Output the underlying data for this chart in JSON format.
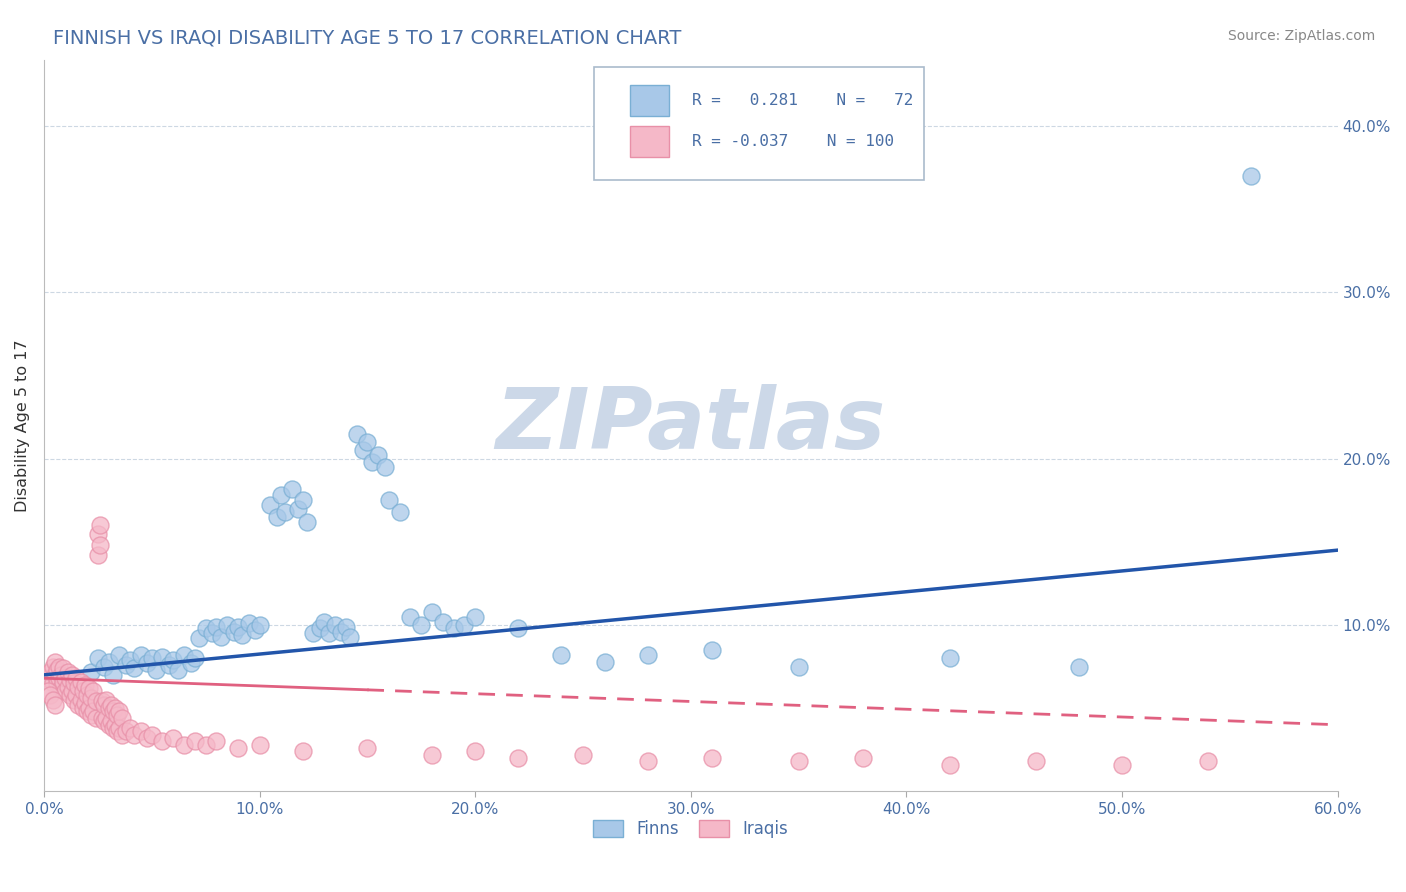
{
  "title": "FINNISH VS IRAQI DISABILITY AGE 5 TO 17 CORRELATION CHART",
  "source": "Source: ZipAtlas.com",
  "ylabel": "Disability Age 5 to 17",
  "xlim": [
    0.0,
    0.6
  ],
  "ylim": [
    0.0,
    0.44
  ],
  "xticks": [
    0.0,
    0.1,
    0.2,
    0.3,
    0.4,
    0.5,
    0.6
  ],
  "yticks": [
    0.1,
    0.2,
    0.3,
    0.4
  ],
  "title_color": "#4a6fa5",
  "title_fontsize": 14,
  "finn_color": "#a8c8e8",
  "finn_edge_color": "#7aafd4",
  "iraqi_color": "#f5b8c8",
  "iraqi_edge_color": "#e890a8",
  "finn_line_color": "#2255aa",
  "iraqi_line_color": "#e06080",
  "finn_R": 0.281,
  "finn_N": 72,
  "iraqi_R": -0.037,
  "iraqi_N": 100,
  "watermark": "ZIPatlas",
  "watermark_color": "#ccd8e8",
  "finn_data": [
    [
      0.022,
      0.072
    ],
    [
      0.025,
      0.08
    ],
    [
      0.028,
      0.075
    ],
    [
      0.03,
      0.078
    ],
    [
      0.032,
      0.07
    ],
    [
      0.035,
      0.082
    ],
    [
      0.038,
      0.076
    ],
    [
      0.04,
      0.079
    ],
    [
      0.042,
      0.074
    ],
    [
      0.045,
      0.082
    ],
    [
      0.048,
      0.077
    ],
    [
      0.05,
      0.08
    ],
    [
      0.052,
      0.073
    ],
    [
      0.055,
      0.081
    ],
    [
      0.058,
      0.076
    ],
    [
      0.06,
      0.079
    ],
    [
      0.062,
      0.073
    ],
    [
      0.065,
      0.082
    ],
    [
      0.068,
      0.077
    ],
    [
      0.07,
      0.08
    ],
    [
      0.072,
      0.092
    ],
    [
      0.075,
      0.098
    ],
    [
      0.078,
      0.095
    ],
    [
      0.08,
      0.099
    ],
    [
      0.082,
      0.093
    ],
    [
      0.085,
      0.1
    ],
    [
      0.088,
      0.096
    ],
    [
      0.09,
      0.099
    ],
    [
      0.092,
      0.094
    ],
    [
      0.095,
      0.101
    ],
    [
      0.098,
      0.097
    ],
    [
      0.1,
      0.1
    ],
    [
      0.105,
      0.172
    ],
    [
      0.108,
      0.165
    ],
    [
      0.11,
      0.178
    ],
    [
      0.112,
      0.168
    ],
    [
      0.115,
      0.182
    ],
    [
      0.118,
      0.17
    ],
    [
      0.12,
      0.175
    ],
    [
      0.122,
      0.162
    ],
    [
      0.125,
      0.095
    ],
    [
      0.128,
      0.098
    ],
    [
      0.13,
      0.102
    ],
    [
      0.132,
      0.095
    ],
    [
      0.135,
      0.1
    ],
    [
      0.138,
      0.096
    ],
    [
      0.14,
      0.099
    ],
    [
      0.142,
      0.093
    ],
    [
      0.145,
      0.215
    ],
    [
      0.148,
      0.205
    ],
    [
      0.15,
      0.21
    ],
    [
      0.152,
      0.198
    ],
    [
      0.155,
      0.202
    ],
    [
      0.158,
      0.195
    ],
    [
      0.16,
      0.175
    ],
    [
      0.165,
      0.168
    ],
    [
      0.17,
      0.105
    ],
    [
      0.175,
      0.1
    ],
    [
      0.18,
      0.108
    ],
    [
      0.185,
      0.102
    ],
    [
      0.19,
      0.098
    ],
    [
      0.195,
      0.1
    ],
    [
      0.2,
      0.105
    ],
    [
      0.22,
      0.098
    ],
    [
      0.24,
      0.082
    ],
    [
      0.26,
      0.078
    ],
    [
      0.28,
      0.082
    ],
    [
      0.31,
      0.085
    ],
    [
      0.35,
      0.075
    ],
    [
      0.42,
      0.08
    ],
    [
      0.48,
      0.075
    ],
    [
      0.56,
      0.37
    ]
  ],
  "iraqi_data": [
    [
      0.002,
      0.068
    ],
    [
      0.003,
      0.072
    ],
    [
      0.004,
      0.065
    ],
    [
      0.004,
      0.075
    ],
    [
      0.005,
      0.07
    ],
    [
      0.005,
      0.078
    ],
    [
      0.006,
      0.065
    ],
    [
      0.006,
      0.073
    ],
    [
      0.007,
      0.068
    ],
    [
      0.007,
      0.075
    ],
    [
      0.008,
      0.062
    ],
    [
      0.008,
      0.07
    ],
    [
      0.009,
      0.066
    ],
    [
      0.009,
      0.074
    ],
    [
      0.01,
      0.06
    ],
    [
      0.01,
      0.068
    ],
    [
      0.011,
      0.063
    ],
    [
      0.011,
      0.072
    ],
    [
      0.012,
      0.058
    ],
    [
      0.012,
      0.067
    ],
    [
      0.013,
      0.06
    ],
    [
      0.013,
      0.07
    ],
    [
      0.014,
      0.055
    ],
    [
      0.014,
      0.065
    ],
    [
      0.015,
      0.058
    ],
    [
      0.015,
      0.068
    ],
    [
      0.016,
      0.052
    ],
    [
      0.016,
      0.063
    ],
    [
      0.017,
      0.055
    ],
    [
      0.017,
      0.066
    ],
    [
      0.018,
      0.05
    ],
    [
      0.018,
      0.06
    ],
    [
      0.019,
      0.053
    ],
    [
      0.019,
      0.064
    ],
    [
      0.02,
      0.048
    ],
    [
      0.02,
      0.058
    ],
    [
      0.021,
      0.05
    ],
    [
      0.021,
      0.062
    ],
    [
      0.022,
      0.046
    ],
    [
      0.022,
      0.056
    ],
    [
      0.023,
      0.048
    ],
    [
      0.023,
      0.06
    ],
    [
      0.024,
      0.044
    ],
    [
      0.024,
      0.054
    ],
    [
      0.025,
      0.142
    ],
    [
      0.025,
      0.155
    ],
    [
      0.026,
      0.148
    ],
    [
      0.026,
      0.16
    ],
    [
      0.027,
      0.044
    ],
    [
      0.027,
      0.054
    ],
    [
      0.028,
      0.042
    ],
    [
      0.028,
      0.052
    ],
    [
      0.029,
      0.044
    ],
    [
      0.029,
      0.055
    ],
    [
      0.03,
      0.04
    ],
    [
      0.03,
      0.05
    ],
    [
      0.031,
      0.042
    ],
    [
      0.031,
      0.052
    ],
    [
      0.032,
      0.038
    ],
    [
      0.032,
      0.048
    ],
    [
      0.033,
      0.04
    ],
    [
      0.033,
      0.05
    ],
    [
      0.034,
      0.036
    ],
    [
      0.034,
      0.046
    ],
    [
      0.035,
      0.038
    ],
    [
      0.035,
      0.048
    ],
    [
      0.036,
      0.034
    ],
    [
      0.036,
      0.044
    ],
    [
      0.038,
      0.036
    ],
    [
      0.04,
      0.038
    ],
    [
      0.042,
      0.034
    ],
    [
      0.045,
      0.036
    ],
    [
      0.048,
      0.032
    ],
    [
      0.05,
      0.034
    ],
    [
      0.055,
      0.03
    ],
    [
      0.06,
      0.032
    ],
    [
      0.065,
      0.028
    ],
    [
      0.07,
      0.03
    ],
    [
      0.075,
      0.028
    ],
    [
      0.08,
      0.03
    ],
    [
      0.09,
      0.026
    ],
    [
      0.1,
      0.028
    ],
    [
      0.12,
      0.024
    ],
    [
      0.15,
      0.026
    ],
    [
      0.18,
      0.022
    ],
    [
      0.2,
      0.024
    ],
    [
      0.22,
      0.02
    ],
    [
      0.25,
      0.022
    ],
    [
      0.28,
      0.018
    ],
    [
      0.31,
      0.02
    ],
    [
      0.35,
      0.018
    ],
    [
      0.38,
      0.02
    ],
    [
      0.42,
      0.016
    ],
    [
      0.46,
      0.018
    ],
    [
      0.5,
      0.016
    ],
    [
      0.54,
      0.018
    ],
    [
      0.002,
      0.06
    ],
    [
      0.003,
      0.058
    ],
    [
      0.004,
      0.055
    ],
    [
      0.005,
      0.052
    ]
  ]
}
